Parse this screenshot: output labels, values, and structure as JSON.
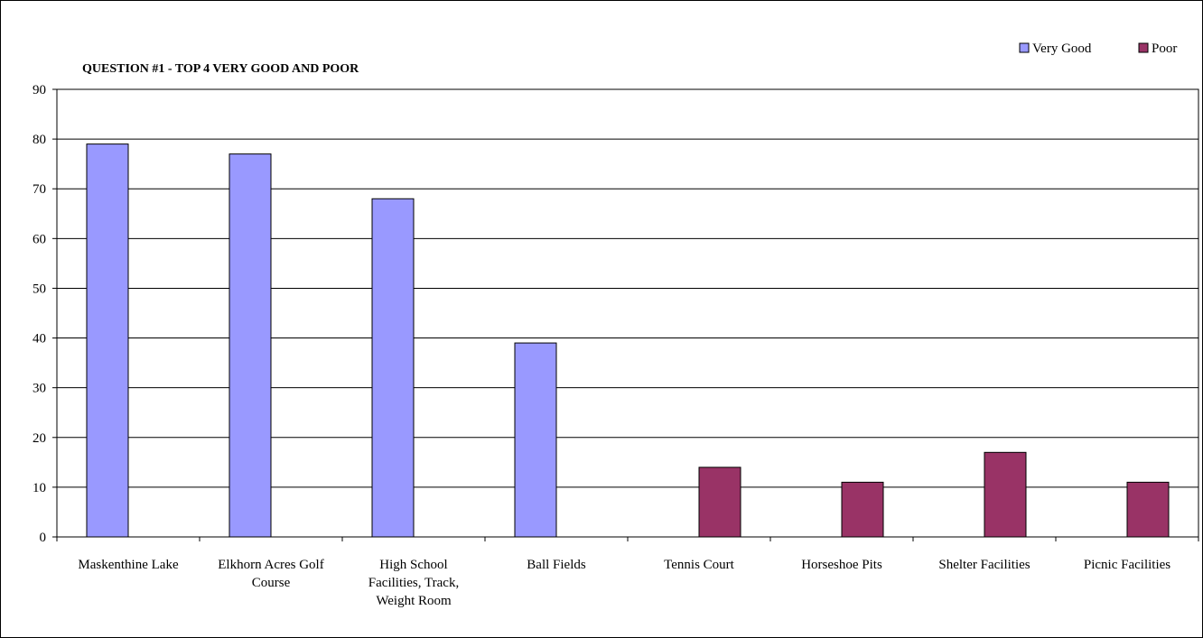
{
  "chart_data": {
    "type": "bar",
    "title": "QUESTION #1 - TOP 4 VERY GOOD AND POOR",
    "xlabel": "",
    "ylabel": "",
    "ylim": [
      0,
      90
    ],
    "yticks": [
      0,
      10,
      20,
      30,
      40,
      50,
      60,
      70,
      80,
      90
    ],
    "grid": true,
    "legend_position": "top-right",
    "categories": [
      [
        "Maskenthine Lake"
      ],
      [
        "Elkhorn Acres Golf",
        "Course"
      ],
      [
        "High School",
        "Facilities, Track,",
        "Weight Room"
      ],
      [
        "Ball Fields"
      ],
      [
        "Tennis Court"
      ],
      [
        "Horseshoe Pits"
      ],
      [
        "Shelter Facilities"
      ],
      [
        "Picnic Facilities"
      ]
    ],
    "series": [
      {
        "name": "Very Good",
        "color": "#9999ff",
        "values": [
          79,
          77,
          68,
          39,
          null,
          null,
          null,
          null
        ]
      },
      {
        "name": "Poor",
        "color": "#993366",
        "values": [
          null,
          null,
          null,
          null,
          14,
          11,
          17,
          11
        ]
      }
    ]
  }
}
